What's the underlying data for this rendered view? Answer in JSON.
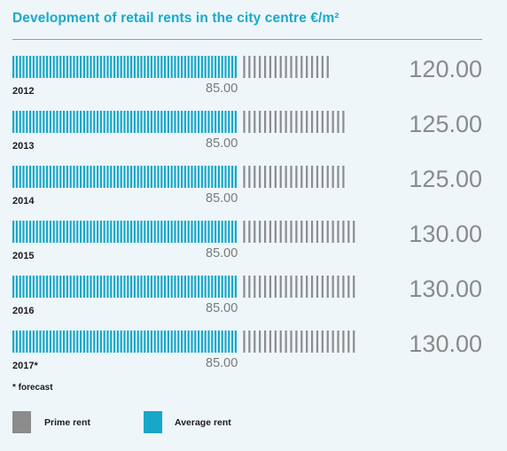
{
  "title": "Development of retail rents in the city centre €/m²",
  "colors": {
    "prime": "#8c8c8c",
    "average": "#17a7c8"
  },
  "chart_data": {
    "type": "bar",
    "title": "Development of retail rents in the city centre €/m²",
    "categories": [
      "2012",
      "2013",
      "2014",
      "2015",
      "2016",
      "2017*"
    ],
    "series": [
      {
        "name": "Prime rent",
        "values": [
          "120.00",
          "125.00",
          "125.00",
          "130.00",
          "130.00",
          "130.00"
        ]
      },
      {
        "name": "Average rent",
        "values": [
          "85.00",
          "85.00",
          "85.00",
          "85.00",
          "85.00",
          "85.00"
        ]
      }
    ]
  },
  "footnote": "* forecast",
  "legend": [
    {
      "label": "Prime rent",
      "color": "#8c8c8c"
    },
    {
      "label": "Average rent",
      "color": "#17a7c8"
    }
  ]
}
